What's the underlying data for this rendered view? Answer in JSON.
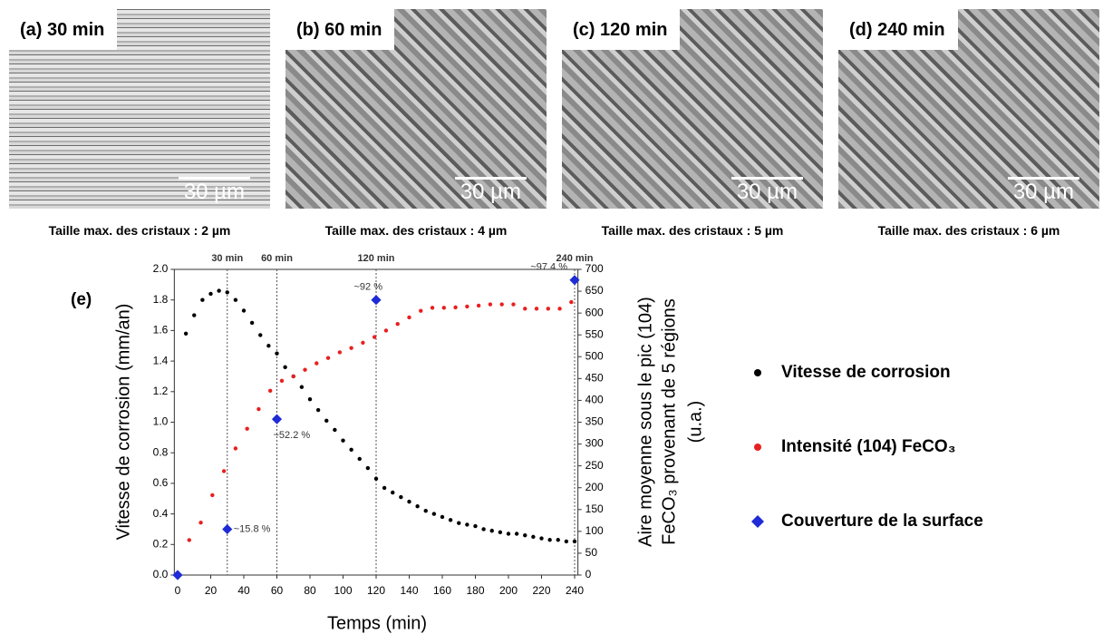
{
  "panels": [
    {
      "label": "(a) 30 min",
      "scale": "30 µm",
      "caption": "Taille max. des cristaux : 2 µm"
    },
    {
      "label": "(b) 60 min",
      "scale": "30 µm",
      "caption": "Taille max. des cristaux : 4 µm"
    },
    {
      "label": "(c) 120 min",
      "scale": "30 µm",
      "caption": "Taille max. des cristaux : 5 µm"
    },
    {
      "label": "(d) 240 min",
      "scale": "30 µm",
      "caption": "Taille max. des cristaux : 6 µm"
    }
  ],
  "chart_data": {
    "type": "scatter",
    "panel_label": "(e)",
    "xlabel": "Temps (min)",
    "ylabel": "Vitesse de corrosion (mm/an)",
    "y2label": [
      "Aire moyenne sous le pic (104)",
      "FeCO₃ provenant de 5 régions",
      "(u.a.)"
    ],
    "xlim": [
      -2,
      242
    ],
    "xticks": [
      0,
      20,
      40,
      60,
      80,
      100,
      120,
      140,
      160,
      180,
      200,
      220,
      240
    ],
    "ylim": [
      0,
      2
    ],
    "yticks": [
      {
        "value": 0,
        "label": "0.0"
      },
      0.2,
      0.4,
      0.6,
      0.8,
      {
        "value": 1,
        "label": "1.0"
      },
      1.2,
      1.4,
      1.6,
      1.8,
      {
        "value": 2,
        "label": "2.0"
      }
    ],
    "y2lim": [
      0,
      700
    ],
    "y2ticks": [
      0,
      50,
      100,
      150,
      200,
      250,
      300,
      350,
      400,
      450,
      500,
      550,
      600,
      650,
      700
    ],
    "reference_lines": [
      {
        "x": 30,
        "label": "30 min"
      },
      {
        "x": 60,
        "label": "60 min"
      },
      {
        "x": 120,
        "label": "120 min"
      },
      {
        "x": 240,
        "label": "240 min"
      }
    ],
    "series": [
      {
        "name": "Vitesse de corrosion",
        "color": "#000000",
        "marker": "circle",
        "x": [
          5,
          10,
          15,
          20,
          25,
          30,
          35,
          40,
          45,
          50,
          55,
          60,
          65,
          70,
          75,
          80,
          85,
          90,
          95,
          100,
          105,
          110,
          115,
          120,
          125,
          130,
          135,
          140,
          145,
          150,
          155,
          160,
          165,
          170,
          175,
          180,
          185,
          190,
          195,
          200,
          205,
          210,
          215,
          220,
          225,
          230,
          235,
          240
        ],
        "values": [
          1.58,
          1.7,
          1.8,
          1.84,
          1.86,
          1.85,
          1.8,
          1.73,
          1.65,
          1.57,
          1.5,
          1.45,
          1.36,
          1.3,
          1.23,
          1.15,
          1.08,
          1.01,
          0.95,
          0.88,
          0.82,
          0.76,
          0.7,
          0.63,
          0.57,
          0.54,
          0.51,
          0.48,
          0.45,
          0.42,
          0.4,
          0.38,
          0.36,
          0.34,
          0.33,
          0.32,
          0.3,
          0.29,
          0.28,
          0.27,
          0.27,
          0.26,
          0.25,
          0.24,
          0.23,
          0.23,
          0.22,
          0.22
        ]
      },
      {
        "name": "Intensité (104) FeCO₃",
        "color": "#e8201f",
        "marker": "circle",
        "axis": "y2",
        "x": [
          7,
          14,
          21,
          28,
          35,
          42,
          49,
          56,
          63,
          70,
          77,
          84,
          91,
          98,
          105,
          112,
          119,
          126,
          133,
          140,
          147,
          154,
          161,
          168,
          175,
          182,
          189,
          196,
          203,
          210,
          217,
          224,
          231,
          238
        ],
        "values": [
          80,
          120,
          183,
          238,
          290,
          335,
          380,
          422,
          445,
          455,
          470,
          485,
          497,
          510,
          520,
          532,
          545,
          560,
          575,
          590,
          605,
          612,
          612,
          613,
          615,
          617,
          620,
          620,
          620,
          610,
          610,
          610,
          610,
          625
        ]
      },
      {
        "name": "Couverture de la surface",
        "color": "#1f2bd6",
        "marker": "diamond",
        "x": [
          0,
          30,
          60,
          120,
          240
        ],
        "values": [
          0,
          0.3,
          1.02,
          1.8,
          1.93
        ],
        "point_labels": [
          null,
          "~15.8 %",
          "~52.2 %",
          "~92 %",
          "~97.4 %"
        ]
      }
    ]
  }
}
